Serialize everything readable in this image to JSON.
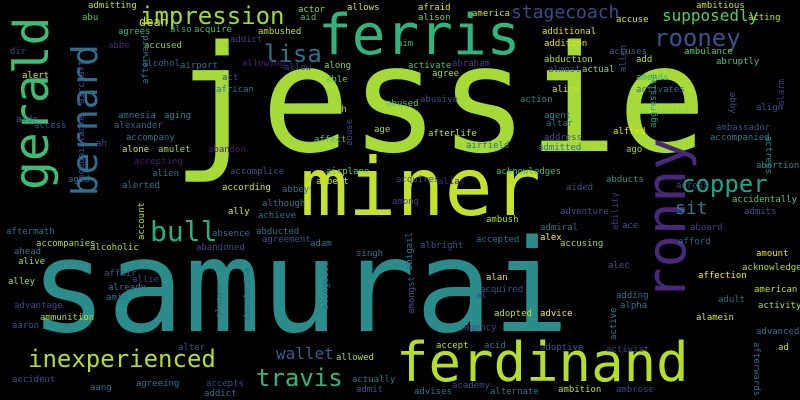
{
  "words": [
    {
      "text": "samurai",
      "color": "#2a8c8b"
    },
    {
      "text": "jessie",
      "color": "#a6db37"
    },
    {
      "text": "miner",
      "color": "#c6e12b"
    },
    {
      "text": "ferris",
      "color": "#2fb47c"
    },
    {
      "text": "ferdinand",
      "color": "#b5de2b"
    },
    {
      "text": "ronny",
      "color": "#482878"
    },
    {
      "text": "gerald",
      "color": "#3fbc73"
    },
    {
      "text": "bernard",
      "color": "#2e6f8e"
    },
    {
      "text": "impression",
      "color": "#a0da39"
    },
    {
      "text": "rooney",
      "color": "#3b518b"
    },
    {
      "text": "copper",
      "color": "#20a386"
    },
    {
      "text": "bull",
      "color": "#28ae80"
    },
    {
      "text": "inexperienced",
      "color": "#b0dd2f"
    },
    {
      "text": "travis",
      "color": "#34b679"
    },
    {
      "text": "lisa",
      "color": "#2c718e"
    },
    {
      "text": "stagecoach",
      "color": "#3e4a89"
    },
    {
      "text": "supposedly",
      "color": "#5cc863"
    },
    {
      "text": "sit",
      "color": "#2a788e"
    },
    {
      "text": "wallet",
      "color": "#34618d"
    },
    {
      "text": "dean",
      "color": "#c8e020"
    },
    {
      "text": "actor",
      "color": "#9fda3a"
    },
    {
      "text": "allows",
      "color": "#d8e219"
    },
    {
      "text": "afraid",
      "color": "#e7e419"
    },
    {
      "text": "america",
      "color": "#cde11d"
    },
    {
      "text": "ambitious",
      "color": "#d0e11c"
    },
    {
      "text": "admitting",
      "color": "#c2df23"
    },
    {
      "text": "acting",
      "color": "#c8e020"
    },
    {
      "text": "accuse",
      "color": "#d5e21a"
    },
    {
      "text": "abu",
      "color": "#5ec962"
    },
    {
      "text": "aid",
      "color": "#44bf70"
    },
    {
      "text": "alison",
      "color": "#75d054"
    },
    {
      "text": "acquire",
      "color": "#3dbc74"
    },
    {
      "text": "addict",
      "color": "#433e85"
    },
    {
      "text": "agrees",
      "color": "#31b57b"
    },
    {
      "text": "also",
      "color": "#22a785"
    },
    {
      "text": "additional",
      "color": "#dde318"
    },
    {
      "text": "ambulance",
      "color": "#5ec962"
    },
    {
      "text": "abruptly",
      "color": "#48c16e"
    },
    {
      "text": "allen",
      "color": "#3a548c"
    },
    {
      "text": "accuses",
      "color": "#31688e"
    },
    {
      "text": "ambushed",
      "color": "#c0df25"
    },
    {
      "text": "aim",
      "color": "#35b779"
    },
    {
      "text": "addition",
      "color": "#e2e418"
    },
    {
      "text": "add",
      "color": "#b8de29"
    },
    {
      "text": "abbe",
      "color": "#482677"
    },
    {
      "text": "accused",
      "color": "#81d34d"
    },
    {
      "text": "alcohol",
      "color": "#33638d"
    },
    {
      "text": "airport",
      "color": "#2a788e"
    },
    {
      "text": "allowing",
      "color": "#482173"
    },
    {
      "text": "allow",
      "color": "#433d84"
    },
    {
      "text": "along",
      "color": "#8bd646"
    },
    {
      "text": "abraham",
      "color": "#414487"
    },
    {
      "text": "abduction",
      "color": "#b5de2b"
    },
    {
      "text": "almost",
      "color": "#3b528b"
    },
    {
      "text": "actual",
      "color": "#9dd93b"
    },
    {
      "text": "amends",
      "color": "#31b57b"
    },
    {
      "text": "activates",
      "color": "#2c728e"
    },
    {
      "text": "abby",
      "color": "#3b528b"
    },
    {
      "text": "alarm",
      "color": "#453781"
    },
    {
      "text": "align",
      "color": "#3a548c"
    },
    {
      "text": "act",
      "color": "#3e4989"
    },
    {
      "text": "african",
      "color": "#2a788e"
    },
    {
      "text": "activate",
      "color": "#4ac16d"
    },
    {
      "text": "agree",
      "color": "#a8db34"
    },
    {
      "text": "alert",
      "color": "#e5e419"
    },
    {
      "text": "aircraft",
      "color": "#3e4989"
    },
    {
      "text": "aide",
      "color": "#2d708e"
    },
    {
      "text": "afterward",
      "color": "#2c738e"
    },
    {
      "text": "amnesia",
      "color": "#2a788e"
    },
    {
      "text": "aging",
      "color": "#26828e"
    },
    {
      "text": "ah",
      "color": "#addc30"
    },
    {
      "text": "able",
      "color": "#56c667"
    },
    {
      "text": "abused",
      "color": "#5ec962"
    },
    {
      "text": "abusive",
      "color": "#3e4989"
    },
    {
      "text": "action",
      "color": "#1f968b"
    },
    {
      "text": "alice",
      "color": "#d5e21a"
    },
    {
      "text": "agent",
      "color": "#26828e"
    },
    {
      "text": "altar",
      "color": "#2c728e"
    },
    {
      "text": "activated",
      "color": "#8bd646"
    },
    {
      "text": "ambassador",
      "color": "#3b528b"
    },
    {
      "text": "accompanied",
      "color": "#2a788e"
    },
    {
      "text": "access",
      "color": "#3b528b"
    },
    {
      "text": "alexander",
      "color": "#31688e"
    },
    {
      "text": "acquaintance",
      "color": "#3f4788"
    },
    {
      "text": "accompany",
      "color": "#2c728e"
    },
    {
      "text": "abuse",
      "color": "#404688"
    },
    {
      "text": "age",
      "color": "#a2da37"
    },
    {
      "text": "afterlife",
      "color": "#c2df23"
    },
    {
      "text": "airfield",
      "color": "#2e6e8e"
    },
    {
      "text": "address",
      "color": "#3b528b"
    },
    {
      "text": "admitted",
      "color": "#2d708e"
    },
    {
      "text": "alfred",
      "color": "#e2e418"
    },
    {
      "text": "aggressive",
      "color": "#1e9b8a"
    },
    {
      "text": "ago",
      "color": "#9bd93c"
    },
    {
      "text": "actress",
      "color": "#1f958b"
    },
    {
      "text": "abortion",
      "color": "#218f8d"
    },
    {
      "text": "alone",
      "color": "#d5e21a"
    },
    {
      "text": "amulet",
      "color": "#a0da39"
    },
    {
      "text": "abandon",
      "color": "#481b6d"
    },
    {
      "text": "affect",
      "color": "#4ec36b"
    },
    {
      "text": "accepting",
      "color": "#481f70"
    },
    {
      "text": "alien",
      "color": "#2a788e"
    },
    {
      "text": "accomplice",
      "color": "#3b528b"
    },
    {
      "text": "airplane",
      "color": "#63cb5f"
    },
    {
      "text": "acquires",
      "color": "#3e4989"
    },
    {
      "text": "alias",
      "color": "#482071"
    },
    {
      "text": "acknowledges",
      "color": "#40bd72"
    },
    {
      "text": "abducts",
      "color": "#1f9e89"
    },
    {
      "text": "aided",
      "color": "#3b528b"
    },
    {
      "text": "across",
      "color": "#3e4989"
    },
    {
      "text": "accidentally",
      "color": "#5ec962"
    },
    {
      "text": "aged",
      "color": "#2d708e"
    },
    {
      "text": "alerted",
      "color": "#2c728e"
    },
    {
      "text": "according",
      "color": "#d5e21a"
    },
    {
      "text": "abbey",
      "color": "#2c728e"
    },
    {
      "text": "albert",
      "color": "#d2e21b"
    },
    {
      "text": "among",
      "color": "#433e85"
    },
    {
      "text": "adventure",
      "color": "#3b528b"
    },
    {
      "text": "ability",
      "color": "#453781"
    },
    {
      "text": "admits",
      "color": "#3b528b"
    },
    {
      "text": "ally",
      "color": "#e5e419"
    },
    {
      "text": "although",
      "color": "#2a788e"
    },
    {
      "text": "achieve",
      "color": "#2c728e"
    },
    {
      "text": "ambush",
      "color": "#addc30"
    },
    {
      "text": "admiral",
      "color": "#2a788e"
    },
    {
      "text": "ace",
      "color": "#3b528b"
    },
    {
      "text": "aboard",
      "color": "#433e85"
    },
    {
      "text": "abandoned",
      "color": "#3e4989"
    },
    {
      "text": "abducted",
      "color": "#2c728e"
    },
    {
      "text": "agreement",
      "color": "#3b528b"
    },
    {
      "text": "adam",
      "color": "#2a788e"
    },
    {
      "text": "alex",
      "color": "#fde725"
    },
    {
      "text": "accepted",
      "color": "#2c728e"
    },
    {
      "text": "accusing",
      "color": "#addc30"
    },
    {
      "text": "afford",
      "color": "#31688e"
    },
    {
      "text": "aftermath",
      "color": "#2c728e"
    },
    {
      "text": "accompanies",
      "color": "#addc30"
    },
    {
      "text": "alcoholic",
      "color": "#addc30"
    },
    {
      "text": "account",
      "color": "#b8de29"
    },
    {
      "text": "absence",
      "color": "#2c728e"
    },
    {
      "text": "albright",
      "color": "#3b528b"
    },
    {
      "text": "singh",
      "color": "#2c728e"
    },
    {
      "text": "abigail",
      "color": "#2a788e"
    },
    {
      "text": "amount",
      "color": "#e5e419"
    },
    {
      "text": "acknowledge",
      "color": "#a8db34"
    },
    {
      "text": "ahead",
      "color": "#2c728e"
    },
    {
      "text": "alive",
      "color": "#addc30"
    },
    {
      "text": "affair",
      "color": "#3b528b"
    },
    {
      "text": "allie",
      "color": "#404688"
    },
    {
      "text": "alley",
      "color": "#addc30"
    },
    {
      "text": "already",
      "color": "#2a788e"
    },
    {
      "text": "alongside",
      "color": "#2a788e"
    },
    {
      "text": "amongst",
      "color": "#3b528b"
    },
    {
      "text": "alan",
      "color": "#e5e419"
    },
    {
      "text": "alec",
      "color": "#3b528b"
    },
    {
      "text": "affection",
      "color": "#fde725"
    },
    {
      "text": "american",
      "color": "#c2df23"
    },
    {
      "text": "adult",
      "color": "#2c728e"
    },
    {
      "text": "adding",
      "color": "#2c728e"
    },
    {
      "text": "alpha",
      "color": "#2a788e"
    },
    {
      "text": "activity",
      "color": "#addc30"
    },
    {
      "text": "advantage",
      "color": "#404688"
    },
    {
      "text": "amid",
      "color": "#2c728e"
    },
    {
      "text": "ammunition",
      "color": "#addc30"
    },
    {
      "text": "acquired",
      "color": "#3b528b"
    },
    {
      "text": "al",
      "color": "#404688"
    },
    {
      "text": "aaron",
      "color": "#3b528b"
    },
    {
      "text": "always",
      "color": "#2c728e"
    },
    {
      "text": "abandoning",
      "color": "#2c728e"
    },
    {
      "text": "adopted",
      "color": "#c2df23"
    },
    {
      "text": "advice",
      "color": "#fde725"
    },
    {
      "text": "alamein",
      "color": "#d5e21a"
    },
    {
      "text": "advanced",
      "color": "#2c728e"
    },
    {
      "text": "agency",
      "color": "#404688"
    },
    {
      "text": "active",
      "color": "#2a788e"
    },
    {
      "text": "alter",
      "color": "#3b528b"
    },
    {
      "text": "allowed",
      "color": "#addc30"
    },
    {
      "text": "accept",
      "color": "#c2df23"
    },
    {
      "text": "acid",
      "color": "#2a788e"
    },
    {
      "text": "adoptive",
      "color": "#3b528b"
    },
    {
      "text": "activist",
      "color": "#3e4989"
    },
    {
      "text": "ad",
      "color": "#c2df23"
    },
    {
      "text": "afterwards",
      "color": "#2c728e"
    },
    {
      "text": "accident",
      "color": "#3b528b"
    },
    {
      "text": "aang",
      "color": "#2c728e"
    },
    {
      "text": "agreeing",
      "color": "#2a788e"
    },
    {
      "text": "accepts",
      "color": "#3e4989"
    },
    {
      "text": "addict",
      "color": "#2c728e"
    },
    {
      "text": "actually",
      "color": "#2a788e"
    },
    {
      "text": "admit",
      "color": "#3b528b"
    },
    {
      "text": "advises",
      "color": "#2a788e"
    },
    {
      "text": "academy",
      "color": "#404688"
    },
    {
      "text": "alternate",
      "color": "#2a788e"
    },
    {
      "text": "ambition",
      "color": "#c2df23"
    },
    {
      "text": "ambrose",
      "color": "#404688"
    },
    {
      "text": "dir",
      "color": "#404688"
    },
    {
      "text": "ah",
      "color": "#404688"
    }
  ]
}
